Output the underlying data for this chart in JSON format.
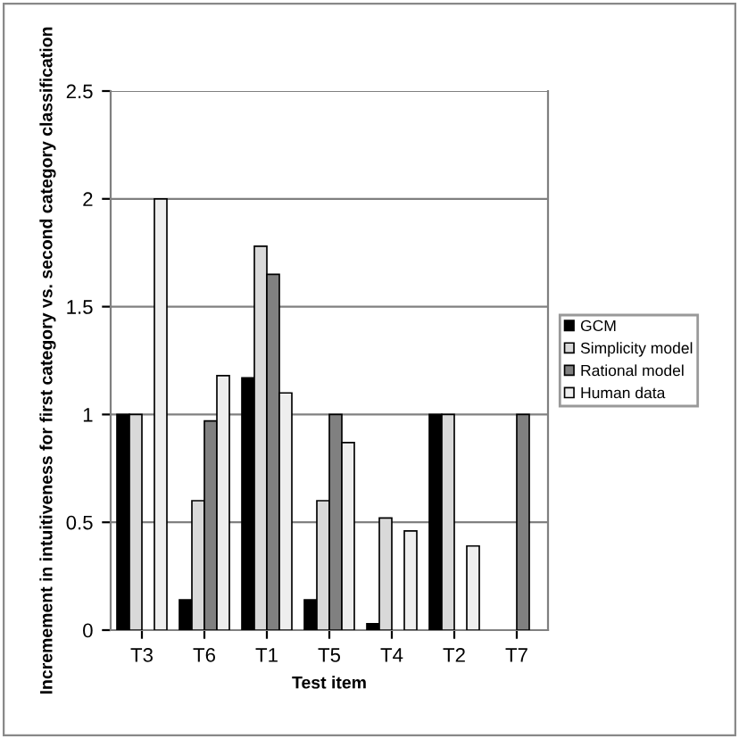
{
  "chart_data": {
    "type": "bar",
    "xlabel": "Test item",
    "ylabel": "Incremement in intuitiveness for first category vs. second category classification",
    "categories": [
      "T3",
      "T6",
      "T1",
      "T5",
      "T4",
      "T2",
      "T7"
    ],
    "series": [
      {
        "name": "GCM",
        "color": "#000000",
        "values": [
          1,
          0.14,
          1.17,
          0.14,
          0.03,
          1,
          null
        ]
      },
      {
        "name": "Simplicity model",
        "color": "#d9d9d9",
        "values": [
          1,
          0.6,
          1.78,
          0.6,
          0.52,
          1,
          null
        ]
      },
      {
        "name": "Rational model",
        "color": "#808080",
        "values": [
          null,
          0.97,
          1.65,
          1,
          null,
          null,
          1
        ]
      },
      {
        "name": "Human data",
        "color": "#eeeeee",
        "values": [
          2,
          1.18,
          1.1,
          0.87,
          0.46,
          0.39,
          null
        ]
      }
    ],
    "ylim": [
      0,
      2.5
    ],
    "yticks": [
      0,
      0.5,
      1,
      1.5,
      2,
      2.5
    ],
    "grid": "y",
    "legend": "right"
  }
}
